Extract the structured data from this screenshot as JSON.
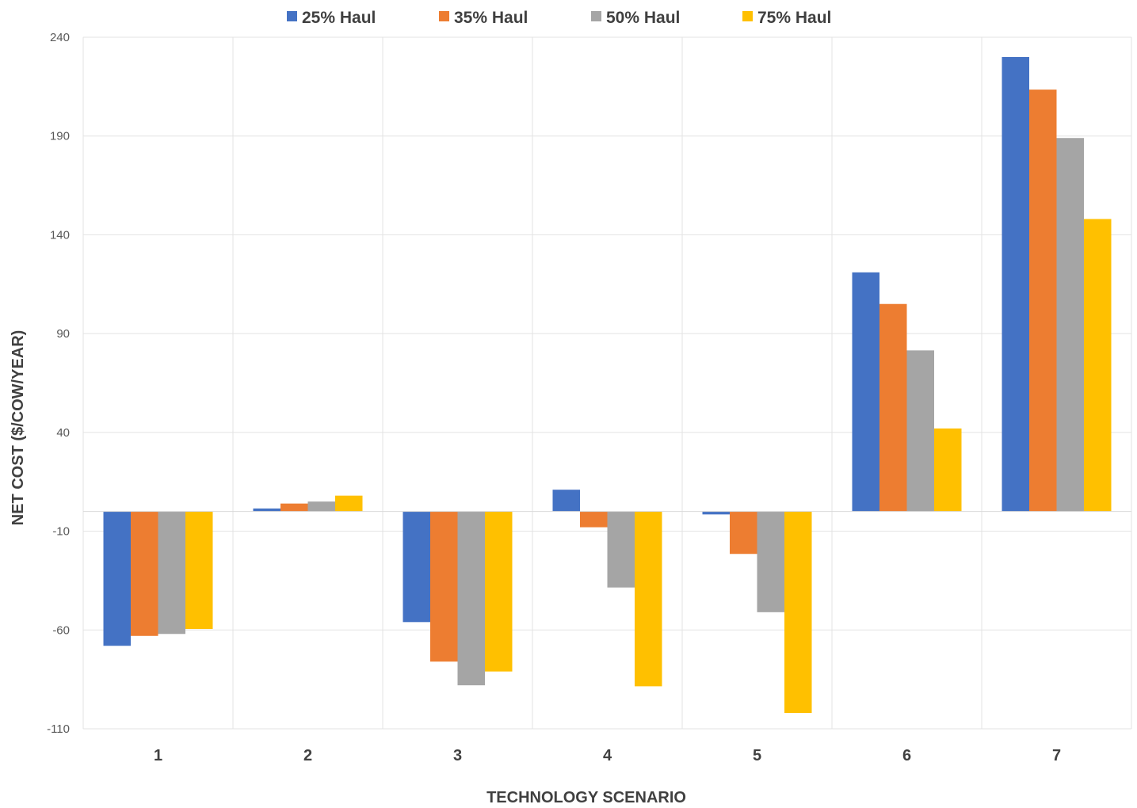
{
  "chart_data": {
    "type": "bar",
    "title": "",
    "xlabel": "TECHNOLOGY SCENARIO",
    "ylabel": "NET COST ($/COW/YEAR)",
    "ylim": [
      -110,
      240
    ],
    "yticks": [
      240,
      190,
      140,
      90,
      40,
      -10,
      -60,
      -110
    ],
    "categories": [
      "1",
      "2",
      "3",
      "4",
      "5",
      "6",
      "7"
    ],
    "grid": true,
    "legend_position": "top",
    "series": [
      {
        "name": "25% Haul",
        "color": "#4472C4",
        "values": [
          -68,
          1.5,
          -56,
          11,
          -1.5,
          121,
          230
        ]
      },
      {
        "name": "35% Haul",
        "color": "#ED7D31",
        "values": [
          -63,
          4,
          -76,
          -8,
          -21.5,
          105,
          213.5
        ]
      },
      {
        "name": "50% Haul",
        "color": "#A5A5A5",
        "values": [
          -62,
          5,
          -88,
          -38.5,
          -51,
          81.5,
          189
        ]
      },
      {
        "name": "75% Haul",
        "color": "#FFC000",
        "values": [
          -59.5,
          8,
          -81,
          -88.5,
          -102,
          42,
          148
        ]
      }
    ]
  }
}
